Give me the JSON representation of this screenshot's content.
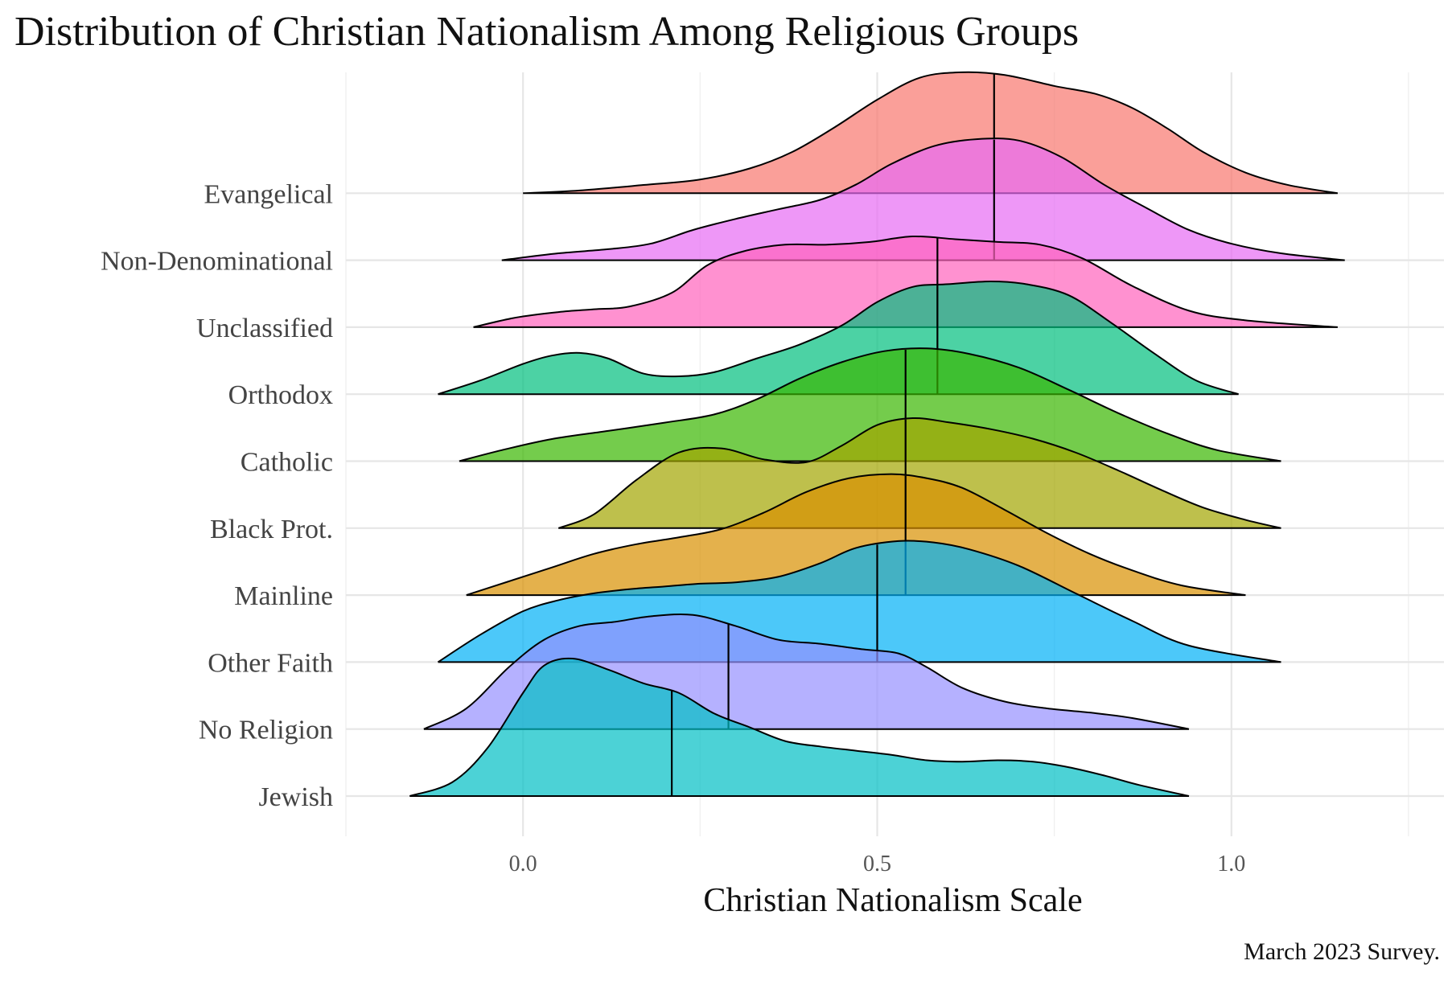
{
  "chart_data": {
    "type": "ridgeline",
    "title": "Distribution of Christian Nationalism Among Religious Groups",
    "xlabel": "Christian Nationalism Scale",
    "ylabel": "",
    "caption": "March 2023 Survey.",
    "xlim": [
      -0.25,
      1.3
    ],
    "x_ticks": [
      0.0,
      0.5,
      1.0
    ],
    "x_tick_labels": [
      "0.0",
      "0.5",
      "1.0"
    ],
    "grid": true,
    "legend": "none",
    "series": [
      {
        "name": "Jewish",
        "color": "#00BFC4",
        "median": 0.21,
        "density": [
          [
            -0.16,
            0
          ],
          [
            -0.1,
            0.1
          ],
          [
            -0.05,
            0.35
          ],
          [
            0.0,
            0.75
          ],
          [
            0.03,
            0.95
          ],
          [
            0.07,
            1.0
          ],
          [
            0.12,
            0.92
          ],
          [
            0.17,
            0.82
          ],
          [
            0.22,
            0.75
          ],
          [
            0.27,
            0.6
          ],
          [
            0.32,
            0.5
          ],
          [
            0.37,
            0.4
          ],
          [
            0.42,
            0.36
          ],
          [
            0.47,
            0.33
          ],
          [
            0.52,
            0.3
          ],
          [
            0.57,
            0.26
          ],
          [
            0.62,
            0.25
          ],
          [
            0.67,
            0.26
          ],
          [
            0.72,
            0.25
          ],
          [
            0.77,
            0.21
          ],
          [
            0.82,
            0.15
          ],
          [
            0.87,
            0.08
          ],
          [
            0.94,
            0.0
          ]
        ]
      },
      {
        "name": "No Religion",
        "color": "#9590FF",
        "median": 0.29,
        "density": [
          [
            -0.14,
            0
          ],
          [
            -0.08,
            0.15
          ],
          [
            -0.02,
            0.45
          ],
          [
            0.03,
            0.65
          ],
          [
            0.08,
            0.75
          ],
          [
            0.13,
            0.78
          ],
          [
            0.18,
            0.82
          ],
          [
            0.24,
            0.83
          ],
          [
            0.3,
            0.75
          ],
          [
            0.36,
            0.65
          ],
          [
            0.42,
            0.62
          ],
          [
            0.48,
            0.58
          ],
          [
            0.53,
            0.55
          ],
          [
            0.57,
            0.45
          ],
          [
            0.62,
            0.3
          ],
          [
            0.68,
            0.2
          ],
          [
            0.74,
            0.15
          ],
          [
            0.8,
            0.12
          ],
          [
            0.86,
            0.08
          ],
          [
            0.94,
            0.0
          ]
        ]
      },
      {
        "name": "Other Faith",
        "color": "#00B0F6",
        "median": 0.5,
        "density": [
          [
            -0.12,
            0
          ],
          [
            -0.06,
            0.2
          ],
          [
            0.0,
            0.37
          ],
          [
            0.05,
            0.45
          ],
          [
            0.1,
            0.5
          ],
          [
            0.15,
            0.53
          ],
          [
            0.2,
            0.55
          ],
          [
            0.25,
            0.57
          ],
          [
            0.3,
            0.58
          ],
          [
            0.36,
            0.62
          ],
          [
            0.42,
            0.72
          ],
          [
            0.47,
            0.83
          ],
          [
            0.53,
            0.88
          ],
          [
            0.58,
            0.87
          ],
          [
            0.63,
            0.82
          ],
          [
            0.7,
            0.7
          ],
          [
            0.78,
            0.5
          ],
          [
            0.86,
            0.3
          ],
          [
            0.94,
            0.12
          ],
          [
            1.07,
            0.0
          ]
        ]
      },
      {
        "name": "Mainline",
        "color": "#D89000",
        "median": 0.54,
        "density": [
          [
            -0.08,
            0
          ],
          [
            -0.02,
            0.1
          ],
          [
            0.04,
            0.2
          ],
          [
            0.1,
            0.3
          ],
          [
            0.16,
            0.37
          ],
          [
            0.22,
            0.42
          ],
          [
            0.28,
            0.48
          ],
          [
            0.34,
            0.6
          ],
          [
            0.4,
            0.75
          ],
          [
            0.46,
            0.85
          ],
          [
            0.52,
            0.88
          ],
          [
            0.57,
            0.85
          ],
          [
            0.62,
            0.78
          ],
          [
            0.68,
            0.62
          ],
          [
            0.74,
            0.45
          ],
          [
            0.8,
            0.3
          ],
          [
            0.86,
            0.18
          ],
          [
            0.93,
            0.07
          ],
          [
            1.02,
            0.0
          ]
        ]
      },
      {
        "name": "Black Prot.",
        "color": "#A3A500",
        "median": 0.54,
        "density": [
          [
            0.05,
            0
          ],
          [
            0.1,
            0.1
          ],
          [
            0.16,
            0.35
          ],
          [
            0.22,
            0.55
          ],
          [
            0.28,
            0.58
          ],
          [
            0.34,
            0.5
          ],
          [
            0.4,
            0.48
          ],
          [
            0.45,
            0.6
          ],
          [
            0.5,
            0.75
          ],
          [
            0.55,
            0.8
          ],
          [
            0.6,
            0.77
          ],
          [
            0.66,
            0.72
          ],
          [
            0.72,
            0.65
          ],
          [
            0.78,
            0.55
          ],
          [
            0.84,
            0.42
          ],
          [
            0.9,
            0.28
          ],
          [
            0.96,
            0.15
          ],
          [
            1.02,
            0.06
          ],
          [
            1.07,
            0.0
          ]
        ]
      },
      {
        "name": "Catholic",
        "color": "#39B600",
        "median": 0.54,
        "density": [
          [
            -0.09,
            0
          ],
          [
            -0.03,
            0.08
          ],
          [
            0.04,
            0.16
          ],
          [
            0.12,
            0.22
          ],
          [
            0.2,
            0.28
          ],
          [
            0.27,
            0.34
          ],
          [
            0.33,
            0.45
          ],
          [
            0.39,
            0.6
          ],
          [
            0.45,
            0.72
          ],
          [
            0.51,
            0.8
          ],
          [
            0.57,
            0.82
          ],
          [
            0.63,
            0.78
          ],
          [
            0.7,
            0.68
          ],
          [
            0.77,
            0.52
          ],
          [
            0.84,
            0.35
          ],
          [
            0.91,
            0.2
          ],
          [
            0.98,
            0.08
          ],
          [
            1.07,
            0.0
          ]
        ]
      },
      {
        "name": "Orthodox",
        "color": "#00BF7D",
        "median": 0.585,
        "density": [
          [
            -0.12,
            0
          ],
          [
            -0.06,
            0.1
          ],
          [
            0.0,
            0.22
          ],
          [
            0.04,
            0.28
          ],
          [
            0.08,
            0.3
          ],
          [
            0.12,
            0.26
          ],
          [
            0.17,
            0.15
          ],
          [
            0.22,
            0.13
          ],
          [
            0.27,
            0.16
          ],
          [
            0.33,
            0.26
          ],
          [
            0.39,
            0.36
          ],
          [
            0.45,
            0.5
          ],
          [
            0.5,
            0.67
          ],
          [
            0.55,
            0.78
          ],
          [
            0.6,
            0.8
          ],
          [
            0.66,
            0.82
          ],
          [
            0.71,
            0.8
          ],
          [
            0.77,
            0.72
          ],
          [
            0.83,
            0.52
          ],
          [
            0.89,
            0.3
          ],
          [
            0.95,
            0.1
          ],
          [
            1.01,
            0.0
          ]
        ]
      },
      {
        "name": "Unclassified",
        "color": "#FF62BC",
        "median": 0.585,
        "density": [
          [
            -0.07,
            0
          ],
          [
            -0.01,
            0.07
          ],
          [
            0.05,
            0.11
          ],
          [
            0.1,
            0.13
          ],
          [
            0.15,
            0.15
          ],
          [
            0.21,
            0.25
          ],
          [
            0.26,
            0.45
          ],
          [
            0.31,
            0.55
          ],
          [
            0.37,
            0.6
          ],
          [
            0.43,
            0.6
          ],
          [
            0.49,
            0.62
          ],
          [
            0.55,
            0.66
          ],
          [
            0.61,
            0.64
          ],
          [
            0.67,
            0.62
          ],
          [
            0.73,
            0.6
          ],
          [
            0.79,
            0.5
          ],
          [
            0.86,
            0.3
          ],
          [
            0.94,
            0.12
          ],
          [
            1.02,
            0.05
          ],
          [
            1.15,
            0.0
          ]
        ]
      },
      {
        "name": "Non-Denominational",
        "color": "#E76BF3",
        "median": 0.665,
        "density": [
          [
            -0.03,
            0
          ],
          [
            0.05,
            0.05
          ],
          [
            0.12,
            0.08
          ],
          [
            0.18,
            0.12
          ],
          [
            0.24,
            0.22
          ],
          [
            0.3,
            0.3
          ],
          [
            0.36,
            0.37
          ],
          [
            0.42,
            0.44
          ],
          [
            0.47,
            0.55
          ],
          [
            0.52,
            0.7
          ],
          [
            0.58,
            0.83
          ],
          [
            0.64,
            0.88
          ],
          [
            0.7,
            0.87
          ],
          [
            0.76,
            0.75
          ],
          [
            0.82,
            0.55
          ],
          [
            0.88,
            0.38
          ],
          [
            0.94,
            0.22
          ],
          [
            1.0,
            0.12
          ],
          [
            1.07,
            0.05
          ],
          [
            1.16,
            0.0
          ]
        ]
      },
      {
        "name": "Evangelical",
        "color": "#F8766D",
        "median": 0.665,
        "density": [
          [
            0.0,
            0
          ],
          [
            0.08,
            0.02
          ],
          [
            0.17,
            0.06
          ],
          [
            0.25,
            0.1
          ],
          [
            0.32,
            0.18
          ],
          [
            0.38,
            0.3
          ],
          [
            0.44,
            0.48
          ],
          [
            0.5,
            0.68
          ],
          [
            0.56,
            0.84
          ],
          [
            0.62,
            0.88
          ],
          [
            0.68,
            0.86
          ],
          [
            0.75,
            0.78
          ],
          [
            0.81,
            0.72
          ],
          [
            0.86,
            0.62
          ],
          [
            0.91,
            0.47
          ],
          [
            0.96,
            0.3
          ],
          [
            1.02,
            0.15
          ],
          [
            1.08,
            0.06
          ],
          [
            1.15,
            0.0
          ]
        ]
      }
    ]
  }
}
